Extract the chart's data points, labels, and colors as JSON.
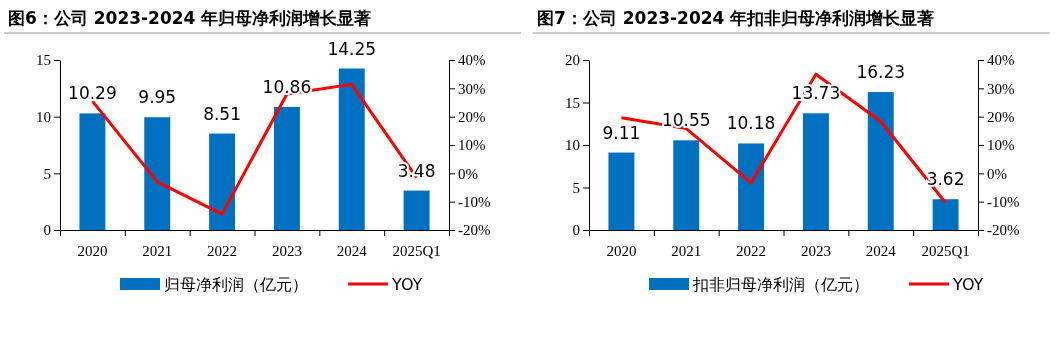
{
  "chart_data": [
    {
      "type": "bar",
      "title": "图6：公司 2023-2024 年归母净利润增长显著",
      "categories": [
        "2020",
        "2021",
        "2022",
        "2023",
        "2024",
        "2025Q1"
      ],
      "series": [
        {
          "name": "归母净利润（亿元）",
          "color": "#0070c0",
          "values": [
            10.29,
            9.95,
            8.51,
            10.86,
            14.25,
            3.48
          ],
          "value_labels": [
            "10.29",
            "9.95",
            "8.51",
            "10.86",
            "14.25",
            "3.48"
          ]
        },
        {
          "name": "YOY",
          "type": "line",
          "axis": "y2",
          "color": "#ff0000",
          "values": [
            25.5,
            -3,
            -14.4,
            28,
            31.4,
            -1.5
          ]
        }
      ],
      "ylim": [
        0,
        15
      ],
      "yticks": [
        0,
        5,
        10,
        15
      ],
      "y2lim": [
        -20,
        40
      ],
      "y2ticks": [
        {
          "value": -20,
          "label": "-20%"
        },
        {
          "value": -10,
          "label": "-10%"
        },
        {
          "value": 0,
          "label": "0%"
        },
        {
          "value": 10,
          "label": "10%"
        },
        {
          "value": 20,
          "label": "20%"
        },
        {
          "value": 30,
          "label": "30%"
        },
        {
          "value": 40,
          "label": "40%"
        }
      ],
      "legend": "bottom",
      "grid": false
    },
    {
      "type": "bar",
      "title": "图7：公司 2023-2024 年扣非归母净利润增长显著",
      "categories": [
        "2020",
        "2021",
        "2022",
        "2023",
        "2024",
        "2025Q1"
      ],
      "series": [
        {
          "name": "扣非归母净利润（亿元）",
          "color": "#0070c0",
          "values": [
            9.11,
            10.55,
            10.18,
            13.73,
            16.23,
            3.62
          ],
          "value_labels": [
            "9.11",
            "10.55",
            "10.18",
            "13.73",
            "16.23",
            "3.62"
          ]
        },
        {
          "name": "YOY",
          "type": "line",
          "axis": "y2",
          "color": "#ff0000",
          "values": [
            19.6,
            15.8,
            -3.4,
            35,
            18.3,
            -10.4
          ]
        }
      ],
      "ylim": [
        0,
        20
      ],
      "yticks": [
        0,
        5,
        10,
        15,
        20
      ],
      "y2lim": [
        -20,
        40
      ],
      "y2ticks": [
        {
          "value": -20,
          "label": "-20%"
        },
        {
          "value": -10,
          "label": "-10%"
        },
        {
          "value": 0,
          "label": "0%"
        },
        {
          "value": 10,
          "label": "10%"
        },
        {
          "value": 20,
          "label": "20%"
        },
        {
          "value": 30,
          "label": "30%"
        },
        {
          "value": 40,
          "label": "40%"
        }
      ],
      "legend": "bottom",
      "grid": false
    }
  ]
}
